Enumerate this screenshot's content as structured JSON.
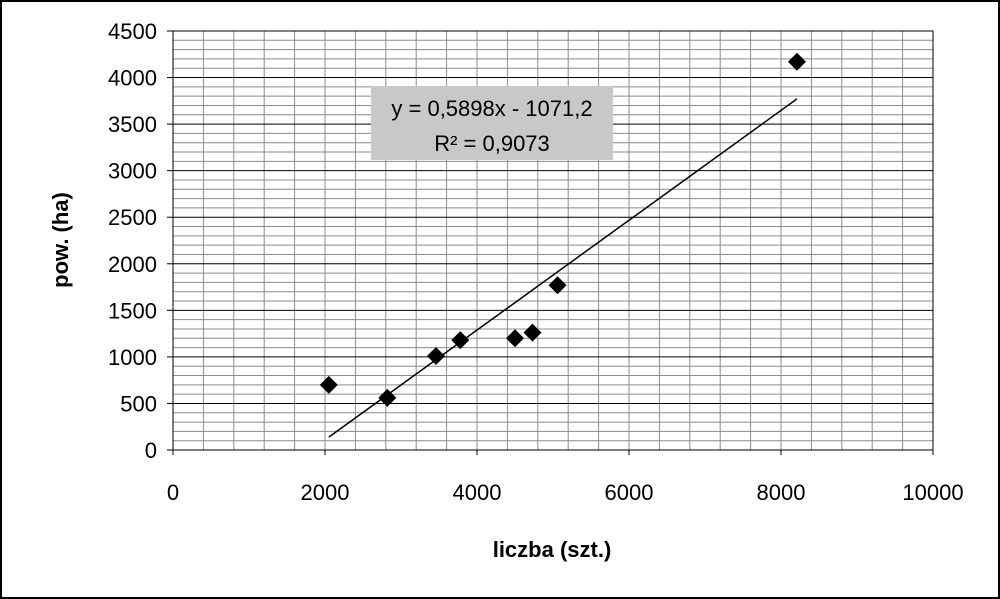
{
  "chart_data": {
    "type": "scatter",
    "title": "",
    "xlabel": "liczba (szt.)",
    "ylabel": "pow. (ha)",
    "xlim": [
      0,
      10000
    ],
    "ylim": [
      0,
      4500
    ],
    "x_ticks": [
      0,
      2000,
      4000,
      6000,
      8000,
      10000
    ],
    "x_tick_labels": [
      "0",
      "2000",
      "4000",
      "6000",
      "8000",
      "10000"
    ],
    "y_ticks": [
      0,
      500,
      1000,
      1500,
      2000,
      2500,
      3000,
      3500,
      4000,
      4500
    ],
    "y_tick_labels": [
      "0",
      "500",
      "1000",
      "1500",
      "2000",
      "2500",
      "3000",
      "3500",
      "4000",
      "4500"
    ],
    "x_minor_step": 400,
    "y_minor_step": 100,
    "grid": true,
    "marker": "diamond",
    "marker_color": "#000000",
    "points": [
      {
        "x": 2050,
        "y": 700
      },
      {
        "x": 2820,
        "y": 560
      },
      {
        "x": 3460,
        "y": 1010
      },
      {
        "x": 3780,
        "y": 1180
      },
      {
        "x": 4500,
        "y": 1200
      },
      {
        "x": 4730,
        "y": 1260
      },
      {
        "x": 5060,
        "y": 1770
      },
      {
        "x": 8210,
        "y": 4170
      }
    ],
    "trendline": {
      "slope": 0.5898,
      "intercept": -1071.2,
      "x_range": [
        2050,
        8210
      ],
      "equation_label": "y = 0,5898x - 1071,2",
      "r2_label": "R² = 0,9073",
      "label_bg": "#c8c8c8"
    }
  }
}
